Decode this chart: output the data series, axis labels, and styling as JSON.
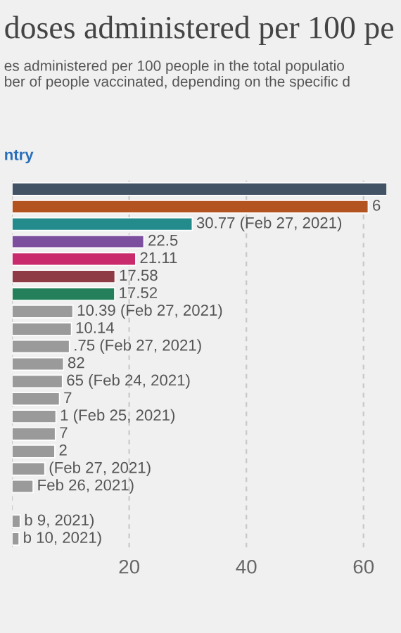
{
  "chart_data": {
    "type": "bar",
    "orientation": "horizontal",
    "title": "doses administered per 100 pe",
    "subtitle": "es administered per 100 people in the total populatio\nber of people vaccinated, depending on the specific d",
    "annotations": [
      "ntry",
      {
        "text": "6",
        "x": 60.8
      },
      {
        "text": ".75 (Feb 27, 2021)",
        "x": 9.8
      },
      {
        "text": "82",
        "x": 8.8
      },
      {
        "text": "65 (Feb 24, 2021)",
        "x": 8.6
      },
      {
        "text": "7",
        "x": 8.1
      },
      {
        "text": "1 (Feb 25, 2021)",
        "x": 7.5
      },
      {
        "text": "7",
        "x": 7.4
      },
      {
        "text": "2",
        "x": 7.3
      },
      {
        "text": "(Feb 27, 2021)",
        "x": 5.6
      },
      {
        "text": "Feb 26, 2021)",
        "x": 3.6
      },
      {
        "text": "b 9, 2021)",
        "x": 1.4
      },
      {
        "text": "b 10, 2021)",
        "x": 1.2
      }
    ],
    "categories": [
      null,
      null,
      null,
      null,
      null,
      null,
      null,
      null,
      null,
      null,
      null,
      null,
      null,
      null,
      null,
      null,
      null,
      null,
      null,
      null,
      null
    ],
    "values": [
      64,
      60.8,
      30.77,
      22.5,
      21.11,
      17.58,
      17.52,
      10.39,
      10.14,
      9.8,
      8.8,
      8.6,
      8.1,
      7.5,
      7.4,
      7.3,
      5.6,
      3.6,
      null,
      1.4,
      1.2
    ],
    "value_labels": [
      null,
      null,
      "30.77 (Feb 27, 2021)",
      "22.5",
      "21.11",
      "17.58",
      "17.52",
      "10.39 (Feb 27, 2021)",
      "10.14",
      null,
      null,
      null,
      null,
      null,
      null,
      null,
      null,
      null,
      null,
      null,
      null
    ],
    "colors": [
      "#435366",
      "#b3531f",
      "#238b8b",
      "#7b4f9e",
      "#c92a6b",
      "#8e3b46",
      "#23805a",
      "#9a9a9a",
      "#9a9a9a",
      "#9a9a9a",
      "#9a9a9a",
      "#9a9a9a",
      "#9a9a9a",
      "#9a9a9a",
      "#9a9a9a",
      "#9a9a9a",
      "#9a9a9a",
      "#9a9a9a",
      "#9a9a9a",
      "#9a9a9a",
      "#9a9a9a"
    ],
    "xlim": [
      0,
      64
    ],
    "xticks": [
      {
        "value": 0,
        "label": null
      },
      20,
      40,
      60
    ],
    "grid": "x",
    "legend": false
  }
}
